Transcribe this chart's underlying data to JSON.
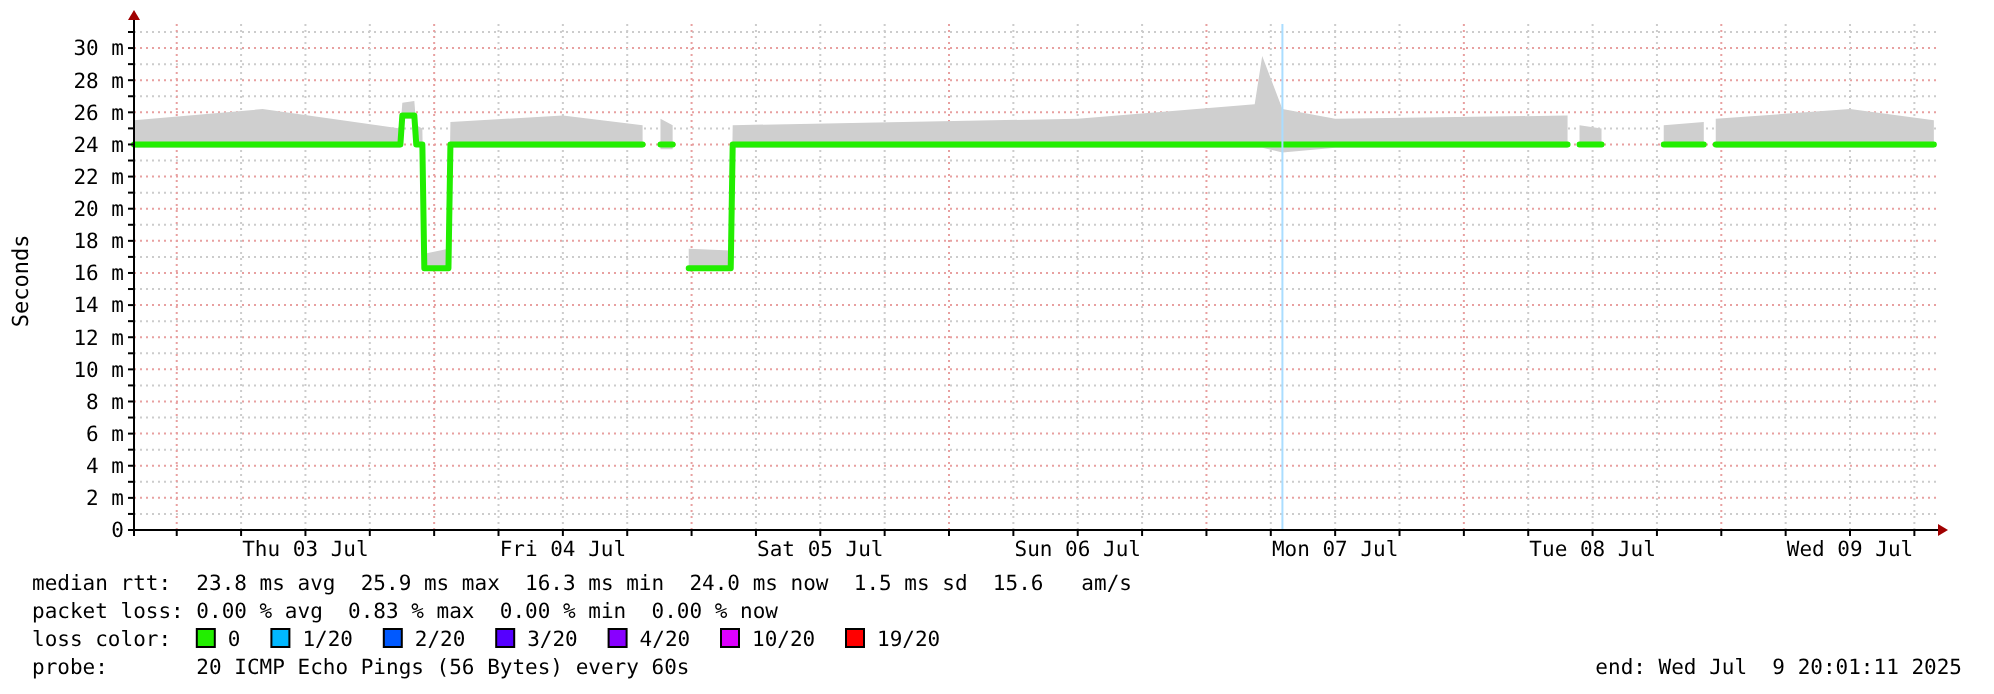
{
  "chart_data": {
    "type": "line",
    "ylabel": "Seconds",
    "grid": true,
    "xlim": [
      "2025-07-02T20:01",
      "2025-07-09T20:01"
    ],
    "xticks": [
      {
        "value": "2025-07-03T00:00",
        "label": null
      },
      {
        "value": "2025-07-03T06:00",
        "label": null
      },
      {
        "value": "2025-07-03T12:00",
        "label": "Thu 03 Jul"
      },
      {
        "value": "2025-07-03T18:00",
        "label": null
      },
      {
        "value": "2025-07-04T00:00",
        "label": null
      },
      {
        "value": "2025-07-04T06:00",
        "label": null
      },
      {
        "value": "2025-07-04T12:00",
        "label": "Fri 04 Jul"
      },
      {
        "value": "2025-07-04T18:00",
        "label": null
      },
      {
        "value": "2025-07-05T00:00",
        "label": null
      },
      {
        "value": "2025-07-05T06:00",
        "label": null
      },
      {
        "value": "2025-07-05T12:00",
        "label": "Sat 05 Jul"
      },
      {
        "value": "2025-07-05T18:00",
        "label": null
      },
      {
        "value": "2025-07-06T00:00",
        "label": null
      },
      {
        "value": "2025-07-06T06:00",
        "label": null
      },
      {
        "value": "2025-07-06T12:00",
        "label": "Sun 06 Jul"
      },
      {
        "value": "2025-07-06T18:00",
        "label": null
      },
      {
        "value": "2025-07-07T00:00",
        "label": null
      },
      {
        "value": "2025-07-07T06:00",
        "label": null
      },
      {
        "value": "2025-07-07T12:00",
        "label": "Mon 07 Jul"
      },
      {
        "value": "2025-07-07T18:00",
        "label": null
      },
      {
        "value": "2025-07-08T00:00",
        "label": null
      },
      {
        "value": "2025-07-08T06:00",
        "label": null
      },
      {
        "value": "2025-07-08T12:00",
        "label": "Tue 08 Jul"
      },
      {
        "value": "2025-07-08T18:00",
        "label": null
      },
      {
        "value": "2025-07-09T00:00",
        "label": null
      },
      {
        "value": "2025-07-09T06:00",
        "label": null
      },
      {
        "value": "2025-07-09T12:00",
        "label": "Wed 09 Jul"
      },
      {
        "value": "2025-07-09T18:00",
        "label": null
      }
    ],
    "ylim": [
      0,
      31
    ],
    "yticks": [
      0,
      {
        "value": 1,
        "label": null
      },
      {
        "value": 2,
        "label": "2 m"
      },
      {
        "value": 3,
        "label": null
      },
      {
        "value": 4,
        "label": "4 m"
      },
      {
        "value": 5,
        "label": null
      },
      {
        "value": 6,
        "label": "6 m"
      },
      {
        "value": 7,
        "label": null
      },
      {
        "value": 8,
        "label": "8 m"
      },
      {
        "value": 9,
        "label": null
      },
      {
        "value": 10,
        "label": "10 m"
      },
      {
        "value": 11,
        "label": null
      },
      {
        "value": 12,
        "label": "12 m"
      },
      {
        "value": 13,
        "label": null
      },
      {
        "value": 14,
        "label": "14 m"
      },
      {
        "value": 15,
        "label": null
      },
      {
        "value": 16,
        "label": "16 m"
      },
      {
        "value": 17,
        "label": null
      },
      {
        "value": 18,
        "label": "18 m"
      },
      {
        "value": 19,
        "label": null
      },
      {
        "value": 20,
        "label": "20 m"
      },
      {
        "value": 21,
        "label": null
      },
      {
        "value": 22,
        "label": "22 m"
      },
      {
        "value": 23,
        "label": null
      },
      {
        "value": 24,
        "label": "24 m"
      },
      {
        "value": 25,
        "label": null
      },
      {
        "value": 26,
        "label": "26 m"
      },
      {
        "value": 27,
        "label": null
      },
      {
        "value": 28,
        "label": "28 m"
      },
      {
        "value": 29,
        "label": null
      },
      {
        "value": 30,
        "label": "30 m"
      },
      {
        "value": 31,
        "label": null
      }
    ],
    "x": [
      "2025-07-02T20:01",
      "2025-07-03T08:00",
      "2025-07-03T20:51",
      "2025-07-03T21:02",
      "2025-07-03T22:09",
      "2025-07-03T22:20",
      "2025-07-03T22:54",
      "2025-07-03T23:05",
      "2025-07-04T01:20",
      "2025-07-04T01:31",
      "2025-07-04T12:00",
      "2025-07-04T19:26",
      "2025-07-04T20:00",
      "2025-07-04T21:06",
      "2025-07-04T22:14",
      "2025-07-04T22:40",
      "2025-07-04T23:44",
      "2025-07-05T03:39",
      "2025-07-05T03:50",
      "2025-07-06T12:00",
      "2025-07-07T04:30",
      "2025-07-07T05:12",
      "2025-07-07T07:05",
      "2025-07-07T12:00",
      "2025-07-08T09:40",
      "2025-07-08T10:00",
      "2025-07-08T10:47",
      "2025-07-08T12:50",
      "2025-07-08T14:00",
      "2025-07-08T18:38",
      "2025-07-08T22:22",
      "2025-07-08T23:00",
      "2025-07-08T23:29",
      "2025-07-09T12:00",
      "2025-07-09T19:49"
    ],
    "series": [
      {
        "color": "#22ee00",
        "values": [
          24,
          24,
          24,
          25.8,
          25.8,
          24,
          24,
          16.3,
          16.3,
          24,
          24,
          24,
          null,
          24,
          24,
          null,
          16.3,
          16.3,
          24,
          24,
          24,
          24,
          24,
          24,
          24,
          null,
          24,
          24,
          null,
          24,
          24,
          null,
          24,
          24,
          24
        ],
        "lower": [
          23.8,
          23.8,
          23.8,
          25.6,
          25.6,
          23.9,
          23.9,
          16.2,
          16.2,
          23.8,
          23.8,
          23.8,
          null,
          23.7,
          23.7,
          null,
          16.2,
          16.2,
          23.8,
          23.8,
          23.8,
          23.8,
          23.5,
          23.8,
          23.8,
          null,
          23.9,
          23.9,
          null,
          23.9,
          23.9,
          null,
          23.8,
          23.8,
          23.8
        ],
        "upper": [
          25.5,
          26.2,
          25,
          26.6,
          26.7,
          25.2,
          25,
          17.2,
          17.5,
          25.4,
          25.8,
          25.2,
          null,
          25.6,
          25.2,
          null,
          17.5,
          17.4,
          25.2,
          25.6,
          26.5,
          29.5,
          26.2,
          25.6,
          25.8,
          null,
          25.2,
          25,
          null,
          25.2,
          25.4,
          null,
          25.6,
          26.2,
          25.5
        ]
      }
    ],
    "ref_lines": [
      {
        "axis": "x",
        "value": "2025-07-07T07:05",
        "color": "#aaddff"
      }
    ],
    "annotations": [
      "median rtt:  23.8 ms avg  25.9 ms max  16.3 ms min  24.0 ms now  1.5 ms sd  15.6   am/s",
      "packet loss: 0.00 % avg  0.83 % max  0.00 % min  0.00 % now",
      "loss color:",
      "0",
      "1/20",
      "2/20",
      "3/20",
      "4/20",
      "10/20",
      "19/20",
      "probe:       20 ICMP Echo Pings (56 Bytes) every 60s",
      "end: Wed Jul  9 20:01:11 2025"
    ]
  }
}
